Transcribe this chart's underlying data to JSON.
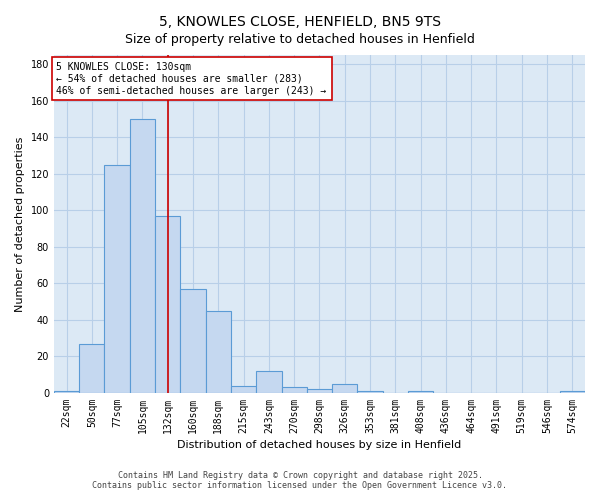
{
  "title": "5, KNOWLES CLOSE, HENFIELD, BN5 9TS",
  "subtitle": "Size of property relative to detached houses in Henfield",
  "xlabel": "Distribution of detached houses by size in Henfield",
  "ylabel": "Number of detached properties",
  "categories": [
    "22sqm",
    "50sqm",
    "77sqm",
    "105sqm",
    "132sqm",
    "160sqm",
    "188sqm",
    "215sqm",
    "243sqm",
    "270sqm",
    "298sqm",
    "326sqm",
    "353sqm",
    "381sqm",
    "408sqm",
    "436sqm",
    "464sqm",
    "491sqm",
    "519sqm",
    "546sqm",
    "574sqm"
  ],
  "values": [
    1,
    27,
    125,
    150,
    97,
    57,
    45,
    4,
    12,
    3,
    2,
    5,
    1,
    0,
    1,
    0,
    0,
    0,
    0,
    0,
    1
  ],
  "bar_color": "#c5d8f0",
  "bar_edge_color": "#5b9bd5",
  "vline_x_index": 4,
  "vline_color": "#cc0000",
  "annotation_line1": "5 KNOWLES CLOSE: 130sqm",
  "annotation_line2": "← 54% of detached houses are smaller (283)",
  "annotation_line3": "46% of semi-detached houses are larger (243) →",
  "annotation_box_color": "#ffffff",
  "annotation_box_edge": "#cc0000",
  "ylim": [
    0,
    185
  ],
  "yticks": [
    0,
    20,
    40,
    60,
    80,
    100,
    120,
    140,
    160,
    180
  ],
  "fig_bg_color": "#ffffff",
  "plot_bg_color": "#dce9f5",
  "grid_color": "#b8cfe8",
  "footer": "Contains HM Land Registry data © Crown copyright and database right 2025.\nContains public sector information licensed under the Open Government Licence v3.0.",
  "title_fontsize": 10,
  "subtitle_fontsize": 9,
  "axis_label_fontsize": 8,
  "tick_fontsize": 7,
  "annotation_fontsize": 7,
  "footer_fontsize": 6
}
